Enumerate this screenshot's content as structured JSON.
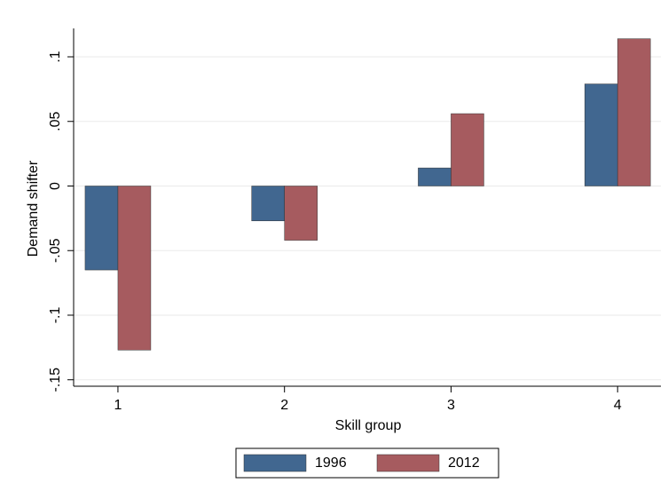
{
  "chart_data": {
    "type": "bar",
    "x_label": "Skill group",
    "y_label": "Demand shifter",
    "x": [
      1,
      2,
      3,
      4
    ],
    "xlim": [
      0.734,
      4.26
    ],
    "xticks": [
      1,
      2,
      3,
      4
    ],
    "ylim": [
      -0.155,
      0.122
    ],
    "yticks": [
      {
        "value": -0.15,
        "label": "-.15"
      },
      {
        "value": -0.1,
        "label": "-.1"
      },
      {
        "value": -0.05,
        "label": "-.05"
      },
      0,
      {
        "value": 0.05,
        "label": ".05"
      },
      {
        "value": 0.1,
        "label": ".1"
      }
    ],
    "grid": true,
    "legend": "bottom",
    "series": [
      {
        "name": "1996",
        "color": "#416790",
        "values": [
          -0.065,
          -0.027,
          0.014,
          0.079
        ]
      },
      {
        "name": "2012",
        "color": "#a65b5f",
        "values": [
          -0.127,
          -0.042,
          0.056,
          0.114
        ]
      }
    ]
  }
}
